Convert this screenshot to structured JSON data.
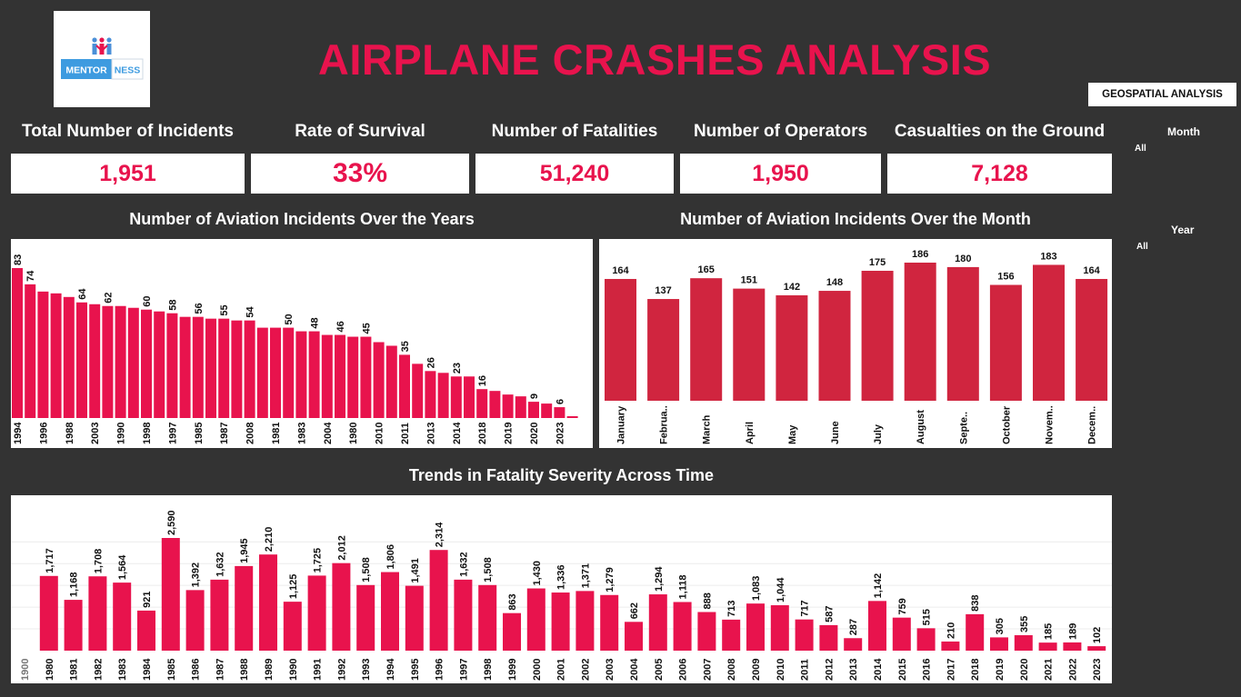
{
  "logo": {
    "text_left": "MENTOR",
    "text_right": "NESS"
  },
  "title": "AIRPLANE CRASHES ANALYSIS",
  "geo_button": "GEOSPATIAL ANALYSIS",
  "kpis": [
    {
      "label": "Total Number of Incidents",
      "value": "1,951"
    },
    {
      "label": "Rate of Survival",
      "value": "33%"
    },
    {
      "label": "Number of Fatalities",
      "value": "51,240"
    },
    {
      "label": "Number of Operators",
      "value": "1,950"
    },
    {
      "label": "Casualties on the Ground",
      "value": "7,128"
    }
  ],
  "filters": {
    "month": {
      "label": "Month",
      "value": "All"
    },
    "year": {
      "label": "Year",
      "value": "All"
    }
  },
  "colors": {
    "accent": "#e8134d",
    "month_bar": "#d0253f",
    "background": "#333333"
  },
  "chart_data": [
    {
      "type": "bar",
      "title": "Number of Aviation Incidents Over the Years",
      "categories": [
        "1994",
        "",
        "1996",
        "",
        "1988",
        "",
        "2003",
        "",
        "1990",
        "",
        "1998",
        "",
        "1997",
        "",
        "1985",
        "",
        "1987",
        "",
        "2008",
        "",
        "1981",
        "",
        "1983",
        "",
        "2004",
        "",
        "1980",
        "",
        "2010",
        "",
        "2011",
        "",
        "2013",
        "",
        "2014",
        "",
        "2018",
        "",
        "2019",
        "",
        "2020",
        "",
        "2023",
        ""
      ],
      "values": [
        83,
        74,
        70,
        69,
        67,
        64,
        63,
        62,
        62,
        61,
        60,
        59,
        58,
        56,
        56,
        55,
        55,
        54,
        54,
        50,
        50,
        50,
        48,
        48,
        46,
        46,
        45,
        45,
        42,
        40,
        35,
        30,
        26,
        25,
        23,
        23,
        16,
        15,
        13,
        12,
        9,
        8,
        6,
        1
      ],
      "data_labels": [
        "83",
        "74",
        "",
        "",
        "",
        "64",
        "",
        "62",
        "",
        "",
        "60",
        "",
        "58",
        "",
        "56",
        "",
        "55",
        "",
        "54",
        "",
        "",
        "50",
        "",
        "48",
        "",
        "46",
        "",
        "45",
        "",
        "",
        "35",
        "",
        "26",
        "",
        "23",
        "",
        "16",
        "",
        "",
        "",
        "9",
        "",
        "6",
        ""
      ]
    },
    {
      "type": "bar",
      "title": "Number of Aviation Incidents Over the Month",
      "categories": [
        "January",
        "Februa..",
        "March",
        "April",
        "May",
        "June",
        "July",
        "August",
        "Septe..",
        "October",
        "Novem..",
        "Decem.."
      ],
      "values": [
        164,
        137,
        165,
        151,
        142,
        148,
        175,
        186,
        180,
        156,
        183,
        164
      ]
    },
    {
      "type": "bar",
      "title": "Trends in Fatality Severity Across Time",
      "categories": [
        "1900",
        "1980",
        "1981",
        "1982",
        "1983",
        "1984",
        "1985",
        "1986",
        "1987",
        "1988",
        "1989",
        "1990",
        "1991",
        "1992",
        "1993",
        "1994",
        "1995",
        "1996",
        "1997",
        "1998",
        "1999",
        "2000",
        "2001",
        "2002",
        "2003",
        "2004",
        "2005",
        "2006",
        "2007",
        "2008",
        "2009",
        "2010",
        "2011",
        "2012",
        "2013",
        "2014",
        "2015",
        "2016",
        "2017",
        "2018",
        "2019",
        "2020",
        "2021",
        "2022",
        "2023"
      ],
      "values": [
        null,
        1717,
        1168,
        1708,
        1564,
        921,
        2590,
        1392,
        1632,
        1945,
        2210,
        1125,
        1725,
        2012,
        1508,
        1806,
        1491,
        2314,
        1632,
        1508,
        863,
        1430,
        1336,
        1371,
        1279,
        662,
        1294,
        1118,
        888,
        713,
        1083,
        1044,
        717,
        587,
        287,
        1142,
        759,
        515,
        210,
        838,
        305,
        355,
        185,
        189,
        102
      ],
      "data_labels": [
        "",
        "1,717",
        "1,168",
        "1,708",
        "1,564",
        "921",
        "2,590",
        "1,392",
        "1,632",
        "1,945",
        "2,210",
        "1,125",
        "1,725",
        "2,012",
        "1,508",
        "1,806",
        "1,491",
        "2,314",
        "1,632",
        "1,508",
        "863",
        "1,430",
        "1,336",
        "1,371",
        "1,279",
        "662",
        "1,294",
        "1,118",
        "888",
        "713",
        "1,083",
        "1,044",
        "717",
        "587",
        "287",
        "1,142",
        "759",
        "515",
        "210",
        "838",
        "305",
        "355",
        "185",
        "189",
        "102"
      ],
      "grid": true
    }
  ]
}
